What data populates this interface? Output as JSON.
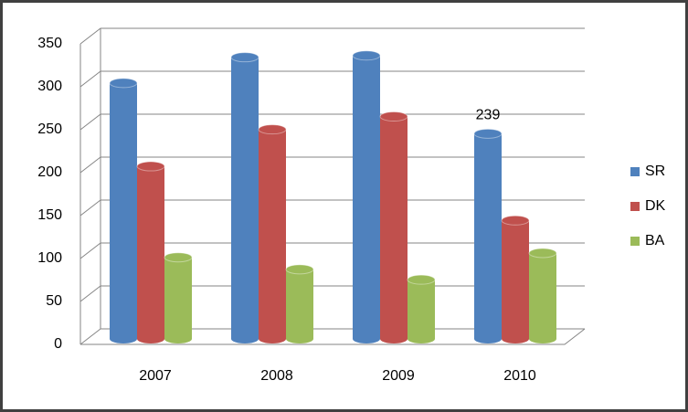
{
  "chart_data": {
    "type": "bar3d",
    "categories": [
      "2007",
      "2008",
      "2009",
      "2010"
    ],
    "series": [
      {
        "name": "SR",
        "color": "#4f81bd",
        "values": [
          298,
          328,
          330,
          239
        ]
      },
      {
        "name": "DK",
        "color": "#c0504d",
        "values": [
          201,
          244,
          259,
          138
        ]
      },
      {
        "name": "BA",
        "color": "#9bbb59",
        "values": [
          95,
          81,
          69,
          100
        ]
      }
    ],
    "data_label": {
      "series": 0,
      "index": 3
    },
    "ylim": [
      0,
      350
    ],
    "yticks": [
      0,
      50,
      100,
      150,
      200,
      250,
      300,
      350
    ],
    "grid": true,
    "legend": "right"
  }
}
